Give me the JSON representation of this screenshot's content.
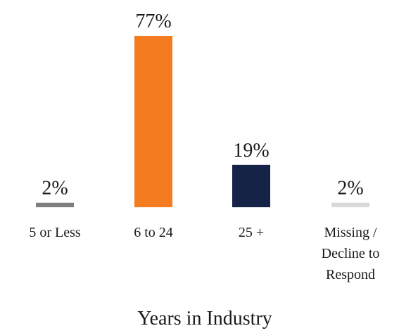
{
  "chart_data": {
    "type": "bar",
    "categories": [
      [
        "5 or Less"
      ],
      [
        "6 to 24"
      ],
      [
        "25 +"
      ],
      [
        "Missing /",
        "Decline to",
        "Respond"
      ]
    ],
    "values": [
      2,
      77,
      19,
      2
    ],
    "data_labels": [
      "2%",
      "77%",
      "19%",
      "2%"
    ],
    "xlabel": "Years in Industry",
    "ylabel": "",
    "ylim": [
      0,
      77
    ],
    "grid": false,
    "legend": "none",
    "bar_colors": [
      "#7f7f7f",
      "#f57b20",
      "#152347",
      "#d9d9d9"
    ]
  }
}
